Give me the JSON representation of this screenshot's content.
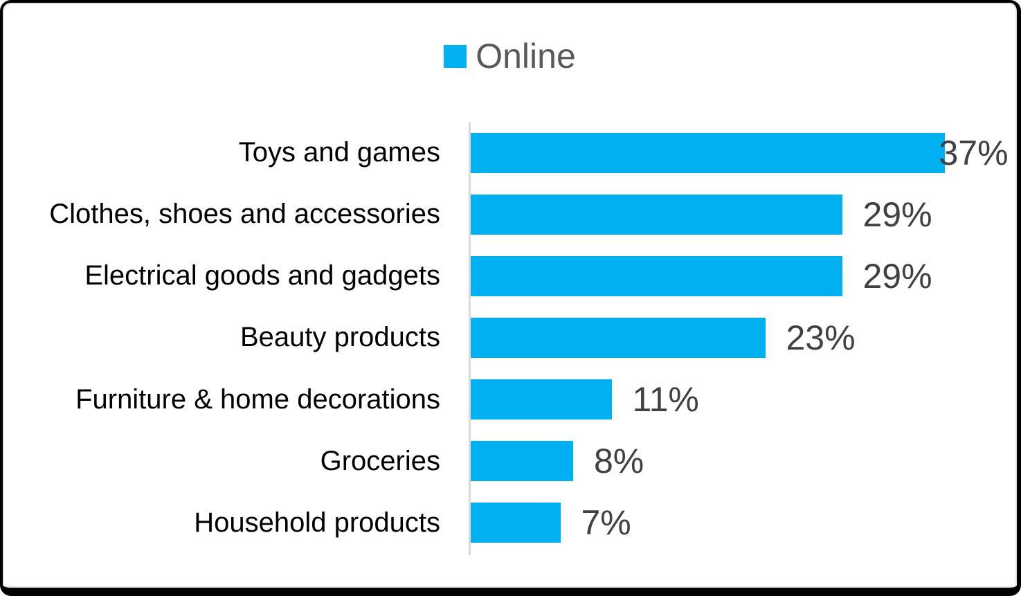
{
  "chart_data": {
    "type": "bar",
    "orientation": "horizontal",
    "title": "",
    "xlabel": "",
    "ylabel": "",
    "legend_position": "top-center",
    "grid": false,
    "series": [
      {
        "name": "Online",
        "color": "#00B0F0"
      }
    ],
    "categories": [
      "Toys and games",
      "Clothes, shoes and accessories",
      "Electrical goods and gadgets",
      "Beauty products",
      "Furniture & home decorations",
      "Groceries",
      "Household products"
    ],
    "values": [
      37,
      29,
      29,
      23,
      11,
      8,
      7
    ],
    "value_labels": [
      "37%",
      "29%",
      "29%",
      "23%",
      "11%",
      "8%",
      "7%"
    ],
    "xlim": [
      0,
      40
    ],
    "colors": {
      "bar": "#00B0F0",
      "value_label": "#404040",
      "category_label": "#000000",
      "axis_line": "#D9D9D9",
      "legend_text": "#595959",
      "frame_border": "#000000",
      "background": "#FFFFFF"
    }
  }
}
